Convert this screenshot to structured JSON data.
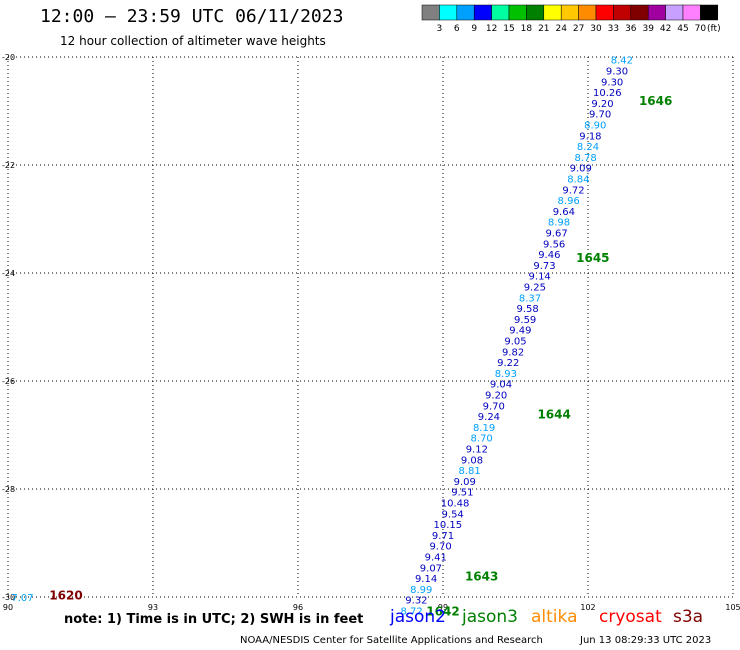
{
  "header": {
    "title": "12:00 — 23:59 UTC 06/11/2023",
    "subtitle": "12 hour collection of altimeter wave heights"
  },
  "legend": {
    "labels": [
      "3",
      "6",
      "9",
      "12",
      "15",
      "18",
      "21",
      "24",
      "27",
      "30",
      "33",
      "36",
      "39",
      "42",
      "45",
      "70"
    ],
    "unit": "(ft)",
    "colors": [
      "#808080",
      "#00ffff",
      "#00a0ff",
      "#0000ff",
      "#00ffa0",
      "#00c000",
      "#008000",
      "#ffff00",
      "#ffc800",
      "#ff8c00",
      "#ff0000",
      "#c00000",
      "#800000",
      "#a000a0",
      "#c8a0ff",
      "#ff80ff",
      "#000000"
    ]
  },
  "axes": {
    "y_labels": [
      "-20",
      "-22",
      "-24",
      "-26",
      "-28",
      "-30"
    ],
    "x_labels": [
      "90",
      "93",
      "96",
      "99",
      "102",
      "105"
    ],
    "lon_range": [
      90,
      105
    ],
    "lat_range": [
      -30,
      -20
    ]
  },
  "map": {
    "track": [
      {
        "lat": -20.05,
        "lon": 102.7,
        "value": "8.42",
        "color": "#00a0ff"
      },
      {
        "lat": -20.25,
        "lon": 102.6,
        "value": "9.30",
        "color": "#0000c0"
      },
      {
        "lat": -20.45,
        "lon": 102.5,
        "value": "9.30",
        "color": "#0000c0"
      },
      {
        "lat": -20.65,
        "lon": 102.4,
        "value": "10.26",
        "color": "#0000c0"
      },
      {
        "lat": -20.85,
        "lon": 102.3,
        "value": "9.20",
        "color": "#0000c0"
      },
      {
        "lat": -21.05,
        "lon": 102.25,
        "value": "9.70",
        "color": "#0000c0"
      },
      {
        "lat": -21.25,
        "lon": 102.15,
        "value": "8.90",
        "color": "#00a0ff"
      },
      {
        "lat": -21.45,
        "lon": 102.05,
        "value": "9.18",
        "color": "#0000c0"
      },
      {
        "lat": -21.65,
        "lon": 102.0,
        "value": "8.24",
        "color": "#00a0ff"
      },
      {
        "lat": -21.85,
        "lon": 101.95,
        "value": "8.78",
        "color": "#00a0ff"
      },
      {
        "lat": -22.05,
        "lon": 101.85,
        "value": "9.09",
        "color": "#0000c0"
      },
      {
        "lat": -22.25,
        "lon": 101.8,
        "value": "8.84",
        "color": "#00a0ff"
      },
      {
        "lat": -22.45,
        "lon": 101.7,
        "value": "9.72",
        "color": "#0000c0"
      },
      {
        "lat": -22.65,
        "lon": 101.6,
        "value": "8.96",
        "color": "#00a0ff"
      },
      {
        "lat": -22.85,
        "lon": 101.5,
        "value": "9.64",
        "color": "#0000c0"
      },
      {
        "lat": -23.05,
        "lon": 101.4,
        "value": "8.98",
        "color": "#00a0ff"
      },
      {
        "lat": -23.25,
        "lon": 101.35,
        "value": "9.67",
        "color": "#0000c0"
      },
      {
        "lat": -23.45,
        "lon": 101.3,
        "value": "9.56",
        "color": "#0000c0"
      },
      {
        "lat": -23.65,
        "lon": 101.2,
        "value": "9.46",
        "color": "#0000c0"
      },
      {
        "lat": -23.85,
        "lon": 101.1,
        "value": "9.73",
        "color": "#0000c0"
      },
      {
        "lat": -24.05,
        "lon": 101.0,
        "value": "9.14",
        "color": "#0000c0"
      },
      {
        "lat": -24.25,
        "lon": 100.9,
        "value": "9.25",
        "color": "#0000c0"
      },
      {
        "lat": -24.45,
        "lon": 100.8,
        "value": "8.37",
        "color": "#00a0ff"
      },
      {
        "lat": -24.65,
        "lon": 100.75,
        "value": "9.58",
        "color": "#0000c0"
      },
      {
        "lat": -24.85,
        "lon": 100.7,
        "value": "9.59",
        "color": "#0000c0"
      },
      {
        "lat": -25.05,
        "lon": 100.6,
        "value": "9.49",
        "color": "#0000c0"
      },
      {
        "lat": -25.25,
        "lon": 100.5,
        "value": "9.05",
        "color": "#0000c0"
      },
      {
        "lat": -25.45,
        "lon": 100.45,
        "value": "9.82",
        "color": "#0000c0"
      },
      {
        "lat": -25.65,
        "lon": 100.35,
        "value": "9.22",
        "color": "#0000c0"
      },
      {
        "lat": -25.85,
        "lon": 100.3,
        "value": "8.93",
        "color": "#00a0ff"
      },
      {
        "lat": -26.05,
        "lon": 100.2,
        "value": "9.04",
        "color": "#0000c0"
      },
      {
        "lat": -26.25,
        "lon": 100.1,
        "value": "9.20",
        "color": "#0000c0"
      },
      {
        "lat": -26.45,
        "lon": 100.05,
        "value": "9.70",
        "color": "#0000c0"
      },
      {
        "lat": -26.65,
        "lon": 99.95,
        "value": "9.24",
        "color": "#0000c0"
      },
      {
        "lat": -26.85,
        "lon": 99.85,
        "value": "8.19",
        "color": "#00a0ff"
      },
      {
        "lat": -27.05,
        "lon": 99.8,
        "value": "8.70",
        "color": "#00a0ff"
      },
      {
        "lat": -27.25,
        "lon": 99.7,
        "value": "9.12",
        "color": "#0000c0"
      },
      {
        "lat": -27.45,
        "lon": 99.6,
        "value": "9.08",
        "color": "#0000c0"
      },
      {
        "lat": -27.65,
        "lon": 99.55,
        "value": "8.81",
        "color": "#00a0ff"
      },
      {
        "lat": -27.85,
        "lon": 99.45,
        "value": "9.09",
        "color": "#0000c0"
      },
      {
        "lat": -28.05,
        "lon": 99.4,
        "value": "9.51",
        "color": "#0000c0"
      },
      {
        "lat": -28.25,
        "lon": 99.25,
        "value": "10.48",
        "color": "#0000c0"
      },
      {
        "lat": -28.45,
        "lon": 99.2,
        "value": "9.54",
        "color": "#0000c0"
      },
      {
        "lat": -28.65,
        "lon": 99.1,
        "value": "10.15",
        "color": "#0000c0"
      },
      {
        "lat": -28.85,
        "lon": 99.0,
        "value": "9.71",
        "color": "#0000c0"
      },
      {
        "lat": -29.05,
        "lon": 98.95,
        "value": "9.70",
        "color": "#0000c0"
      },
      {
        "lat": -29.25,
        "lon": 98.85,
        "value": "9.41",
        "color": "#0000c0"
      },
      {
        "lat": -29.45,
        "lon": 98.75,
        "value": "9.07",
        "color": "#0000c0"
      },
      {
        "lat": -29.65,
        "lon": 98.65,
        "value": "9.14",
        "color": "#0000c0"
      },
      {
        "lat": -29.85,
        "lon": 98.55,
        "value": "8.99",
        "color": "#00a0ff"
      },
      {
        "lat": -30.05,
        "lon": 98.45,
        "value": "9.32",
        "color": "#0000c0"
      },
      {
        "lat": -30.25,
        "lon": 98.35,
        "value": "8.72",
        "color": "#00a0ff"
      },
      {
        "lat": -30.0,
        "lon": 90.3,
        "value": "7.07",
        "color": "#00a0ff"
      }
    ],
    "time_labels": [
      {
        "lat": -20.8,
        "lon": 103.4,
        "text": "1646",
        "color": "#008000"
      },
      {
        "lat": -23.7,
        "lon": 102.1,
        "text": "1645",
        "color": "#008000"
      },
      {
        "lat": -26.6,
        "lon": 101.3,
        "text": "1644",
        "color": "#008000"
      },
      {
        "lat": -29.6,
        "lon": 99.8,
        "text": "1643",
        "color": "#008000"
      },
      {
        "lat": -30.25,
        "lon": 99.0,
        "text": "1642",
        "color": "#008000"
      },
      {
        "lat": -29.95,
        "lon": 91.2,
        "text": "1620",
        "color": "#800000"
      }
    ]
  },
  "note": "note:  1) Time is in UTC;  2) SWH is in feet",
  "satellites": {
    "jason2": {
      "label": "jason2",
      "color": "#0000ff"
    },
    "jason3": {
      "label": "jason3",
      "color": "#008000"
    },
    "altika": {
      "label": "altika",
      "color": "#ff8c00"
    },
    "cryosat": {
      "label": "cryosat",
      "color": "#ff0000"
    },
    "s3a": {
      "label": "s3a",
      "color": "#800000"
    }
  },
  "footer": {
    "org": "NOAA/NESDIS Center for Satellite Applications and Research",
    "timestamp": "Jun 13 08:29:33 UTC 2023"
  }
}
